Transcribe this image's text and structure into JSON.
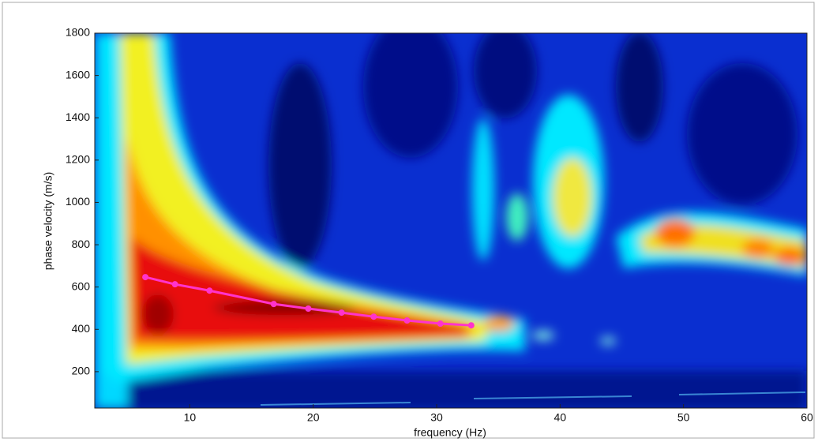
{
  "chart_data": {
    "type": "line",
    "x_label": "frequency (Hz)",
    "y_label": "phase velocity (m/s)",
    "x": [
      6.4,
      8.8,
      11.6,
      16.8,
      19.6,
      22.3,
      24.9,
      27.6,
      30.3,
      32.8
    ],
    "series": [
      {
        "color": "#ff33cc",
        "values": [
          647,
          613,
          583,
          520,
          498,
          479,
          460,
          442,
          427,
          419
        ]
      }
    ],
    "xlim": [
      2.3,
      60
    ],
    "ylim": [
      28,
      1800
    ],
    "xticks": [
      10,
      20,
      30,
      40,
      50,
      60
    ],
    "yticks": [
      200,
      400,
      600,
      800,
      1000,
      1200,
      1400,
      1600,
      1800
    ],
    "markers": true
  }
}
